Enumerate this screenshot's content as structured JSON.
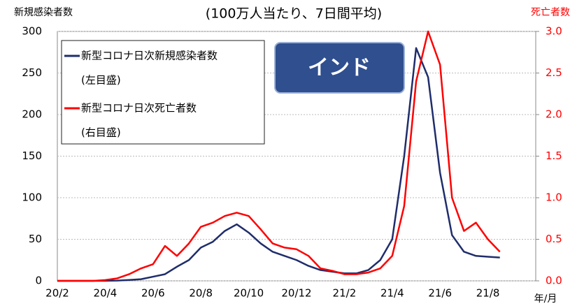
{
  "chart_data": {
    "type": "line",
    "title": "(100万人当たり、7日間平均)",
    "y_label": "新規感染者数",
    "y2_label": "死亡者数",
    "x_label": "年/月",
    "annotation": "インド",
    "categories": [
      "20/2",
      null,
      null,
      null,
      "20/4",
      null,
      null,
      null,
      "20/6",
      null,
      null,
      null,
      "20/8",
      null,
      null,
      null,
      "20/10",
      null,
      null,
      null,
      "20/12",
      null,
      null,
      null,
      "21/2",
      null,
      null,
      null,
      "21/4",
      null,
      null,
      null,
      "21/6",
      null,
      null,
      null,
      "21/8",
      null,
      null,
      null
    ],
    "series": [
      {
        "name": "新型コロナ日次新規感染者数",
        "note": "(左目盛)",
        "color": "#1f2d6b",
        "axis": "y",
        "values": [
          0,
          0,
          0,
          0,
          0.1,
          0.3,
          1,
          2,
          5,
          8,
          17,
          25,
          40,
          47,
          60,
          68,
          58,
          45,
          35,
          30,
          25,
          18,
          13,
          11,
          9,
          9,
          13,
          25,
          50,
          150,
          280,
          245,
          130,
          55,
          35,
          30,
          29,
          28,
          null,
          null
        ]
      },
      {
        "name": "新型コロナ日次死亡者数",
        "note": "(右目盛)",
        "color": "#ff0000",
        "axis": "y2",
        "values": [
          0,
          0,
          0,
          0,
          0.01,
          0.03,
          0.08,
          0.15,
          0.2,
          0.42,
          0.3,
          0.45,
          0.65,
          0.7,
          0.78,
          0.82,
          0.78,
          0.62,
          0.45,
          0.4,
          0.38,
          0.3,
          0.15,
          0.12,
          0.08,
          0.08,
          0.1,
          0.15,
          0.3,
          0.9,
          2.4,
          3.0,
          2.6,
          1.0,
          0.6,
          0.7,
          0.5,
          0.35,
          null,
          null
        ]
      }
    ],
    "ylim": [
      0,
      300
    ],
    "yticks": [
      0,
      50,
      100,
      150,
      200,
      250,
      300
    ],
    "y2lim": [
      0,
      3
    ],
    "y2ticks": [
      {
        "value": 0,
        "label": "0.0"
      },
      {
        "value": 0.5,
        "label": "0.5"
      },
      {
        "value": 1,
        "label": "1.0"
      },
      {
        "value": 1.5,
        "label": "1.5"
      },
      {
        "value": 2,
        "label": "2.0"
      },
      {
        "value": 2.5,
        "label": "2.5"
      },
      {
        "value": 3,
        "label": "3.0"
      }
    ],
    "grid": true
  }
}
